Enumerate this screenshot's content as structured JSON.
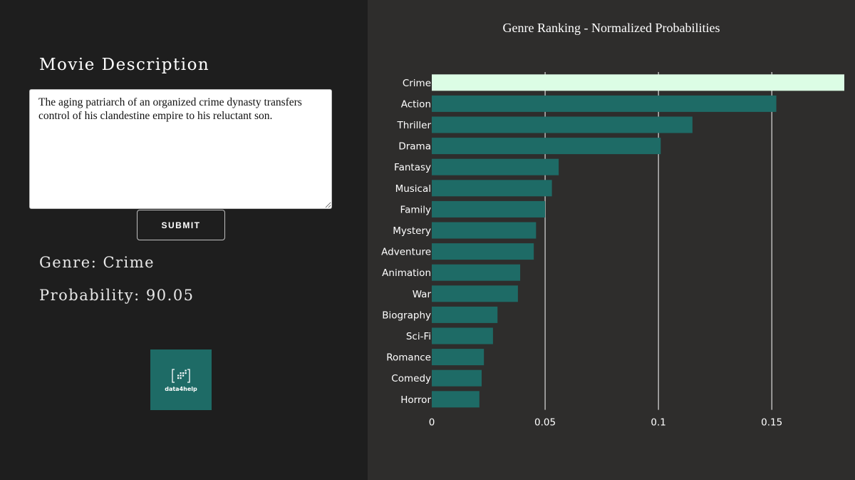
{
  "form": {
    "title": "Movie Description",
    "description_value": "The aging patriarch of an organized crime dynasty transfers control of his clandestine empire to his reluctant son.",
    "submit_label": "SUBMIT"
  },
  "result": {
    "genre_text": "Genre: Crime",
    "probability_text": "Probability: 90.05"
  },
  "logo": {
    "text": "data4help",
    "icon": "data4help-logo-icon",
    "background": "#1e6b66"
  },
  "colors": {
    "bar": "#1e6b66",
    "highlight_bar": "#dcfde5",
    "left_background": "#1e1e1e",
    "right_background": "#2e2d2c"
  },
  "chart_data": {
    "type": "bar",
    "orientation": "horizontal",
    "title": "Genre Ranking - Normalized Probabilities",
    "xlabel": "",
    "ylabel": "",
    "categories": [
      "Crime",
      "Action",
      "Thriller",
      "Drama",
      "Fantasy",
      "Musical",
      "Family",
      "Mystery",
      "Adventure",
      "Animation",
      "War",
      "Biography",
      "Sci-Fi",
      "Romance",
      "Comedy",
      "Horror"
    ],
    "values": [
      0.182,
      0.152,
      0.115,
      0.101,
      0.056,
      0.053,
      0.05,
      0.046,
      0.045,
      0.039,
      0.038,
      0.029,
      0.027,
      0.023,
      0.022,
      0.021
    ],
    "highlight": "Crime",
    "xlim": [
      0,
      0.182
    ],
    "xticks": [
      0,
      0.05,
      0.1,
      0.15
    ],
    "xtick_labels": [
      "0",
      "0.05",
      "0.1",
      "0.15"
    ],
    "grid": true,
    "legend": "none"
  }
}
